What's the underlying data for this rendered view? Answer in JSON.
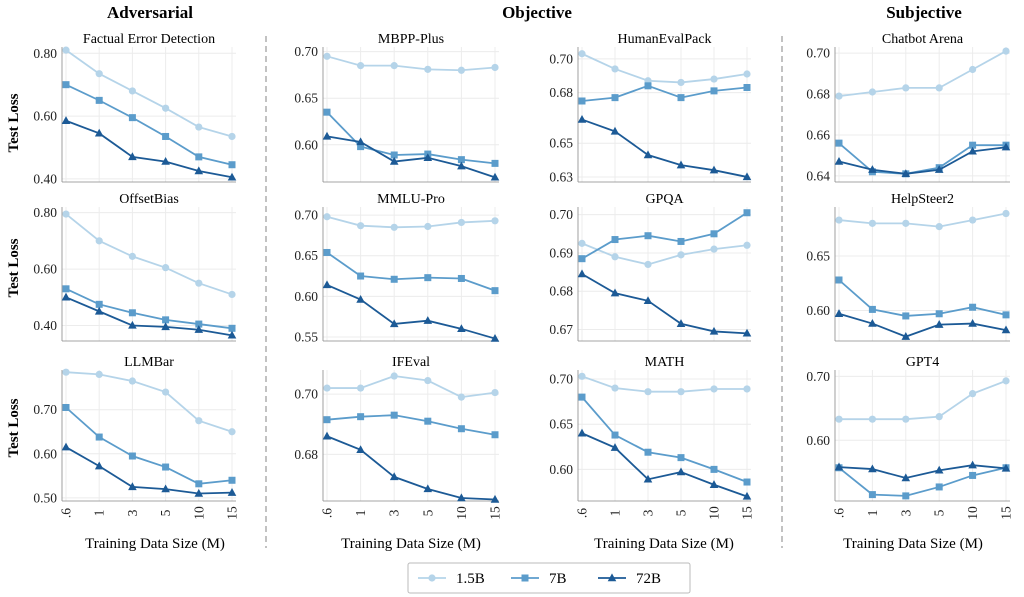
{
  "groups": [
    {
      "title": "Adversarial"
    },
    {
      "title": "Objective"
    },
    {
      "title": "Subjective"
    }
  ],
  "y_axis_label": "Test Loss",
  "x_axis_label": "Training Data Size (M)",
  "x_tick_labels": [
    ".6",
    "1",
    "3",
    "5",
    "10",
    "15"
  ],
  "legend": [
    {
      "label": "1.5B",
      "color": "#b5d4e9",
      "marker": "circle"
    },
    {
      "label": "7B",
      "color": "#5b9ccb",
      "marker": "square"
    },
    {
      "label": "72B",
      "color": "#1c5a96",
      "marker": "triangle"
    }
  ],
  "chart_data": [
    {
      "type": "line",
      "title": "Factual Error Detection",
      "categories": [
        ".6",
        "1",
        "3",
        "5",
        "10",
        "15"
      ],
      "ylim": [
        0.39,
        0.82
      ],
      "yticks": [
        0.4,
        0.6,
        0.8
      ],
      "tick_decimals": 2,
      "series": [
        {
          "name": "1.5B",
          "values": [
            0.81,
            0.735,
            0.68,
            0.625,
            0.565,
            0.535
          ]
        },
        {
          "name": "7B",
          "values": [
            0.7,
            0.65,
            0.595,
            0.535,
            0.47,
            0.445
          ]
        },
        {
          "name": "72B",
          "values": [
            0.585,
            0.545,
            0.47,
            0.455,
            0.425,
            0.405
          ]
        }
      ]
    },
    {
      "type": "line",
      "title": "OffsetBias",
      "categories": [
        ".6",
        "1",
        "3",
        "5",
        "10",
        "15"
      ],
      "ylim": [
        0.345,
        0.82
      ],
      "yticks": [
        0.4,
        0.6,
        0.8
      ],
      "tick_decimals": 2,
      "series": [
        {
          "name": "1.5B",
          "values": [
            0.795,
            0.7,
            0.645,
            0.605,
            0.55,
            0.51
          ]
        },
        {
          "name": "7B",
          "values": [
            0.53,
            0.475,
            0.445,
            0.42,
            0.405,
            0.39
          ]
        },
        {
          "name": "72B",
          "values": [
            0.5,
            0.45,
            0.4,
            0.395,
            0.385,
            0.365
          ]
        }
      ]
    },
    {
      "type": "line",
      "title": "LLMBar",
      "categories": [
        ".6",
        "1",
        "3",
        "5",
        "10",
        "15"
      ],
      "ylim": [
        0.493,
        0.79
      ],
      "yticks": [
        0.5,
        0.6,
        0.7
      ],
      "tick_decimals": 2,
      "series": [
        {
          "name": "1.5B",
          "values": [
            0.785,
            0.78,
            0.765,
            0.74,
            0.675,
            0.65
          ]
        },
        {
          "name": "7B",
          "values": [
            0.705,
            0.638,
            0.595,
            0.57,
            0.532,
            0.54
          ]
        },
        {
          "name": "72B",
          "values": [
            0.615,
            0.572,
            0.525,
            0.52,
            0.51,
            0.512
          ]
        }
      ]
    },
    {
      "type": "line",
      "title": "MBPP-Plus",
      "categories": [
        ".6",
        "1",
        "3",
        "5",
        "10",
        "15"
      ],
      "ylim": [
        0.56,
        0.705
      ],
      "yticks": [
        0.6,
        0.65,
        0.7
      ],
      "tick_decimals": 2,
      "series": [
        {
          "name": "1.5B",
          "values": [
            0.695,
            0.685,
            0.685,
            0.681,
            0.68,
            0.683
          ]
        },
        {
          "name": "7B",
          "values": [
            0.635,
            0.598,
            0.589,
            0.59,
            0.584,
            0.58
          ]
        },
        {
          "name": "72B",
          "values": [
            0.609,
            0.603,
            0.582,
            0.586,
            0.577,
            0.565
          ]
        }
      ]
    },
    {
      "type": "line",
      "title": "MMLU-Pro",
      "categories": [
        ".6",
        "1",
        "3",
        "5",
        "10",
        "15"
      ],
      "ylim": [
        0.545,
        0.71
      ],
      "yticks": [
        0.55,
        0.6,
        0.65,
        0.7
      ],
      "tick_decimals": 2,
      "series": [
        {
          "name": "1.5B",
          "values": [
            0.698,
            0.687,
            0.685,
            0.686,
            0.691,
            0.693
          ]
        },
        {
          "name": "7B",
          "values": [
            0.654,
            0.625,
            0.621,
            0.623,
            0.622,
            0.607
          ]
        },
        {
          "name": "72B",
          "values": [
            0.614,
            0.596,
            0.566,
            0.57,
            0.56,
            0.548
          ]
        }
      ]
    },
    {
      "type": "line",
      "title": "IFEval",
      "categories": [
        ".6",
        "1",
        "3",
        "5",
        "10",
        "15"
      ],
      "ylim": [
        0.6645,
        0.708
      ],
      "yticks": [
        0.68,
        0.7
      ],
      "tick_decimals": 2,
      "series": [
        {
          "name": "1.5B",
          "values": [
            0.702,
            0.702,
            0.706,
            0.7045,
            0.699,
            0.7005
          ]
        },
        {
          "name": "7B",
          "values": [
            0.6915,
            0.6925,
            0.693,
            0.691,
            0.6885,
            0.6865
          ]
        },
        {
          "name": "72B",
          "values": [
            0.686,
            0.6815,
            0.6725,
            0.6685,
            0.6655,
            0.665
          ]
        }
      ]
    },
    {
      "type": "line",
      "title": "HumanEvalPack",
      "categories": [
        ".6",
        "1",
        "3",
        "5",
        "10",
        "15"
      ],
      "ylim": [
        0.627,
        0.707
      ],
      "yticks": [
        0.63,
        0.65,
        0.68,
        0.7
      ],
      "tick_decimals": 2,
      "series": [
        {
          "name": "1.5B",
          "values": [
            0.703,
            0.694,
            0.687,
            0.686,
            0.688,
            0.691
          ]
        },
        {
          "name": "7B",
          "values": [
            0.675,
            0.677,
            0.684,
            0.677,
            0.681,
            0.683
          ]
        },
        {
          "name": "72B",
          "values": [
            0.664,
            0.657,
            0.643,
            0.637,
            0.634,
            0.63
          ]
        }
      ]
    },
    {
      "type": "line",
      "title": "GPQA",
      "categories": [
        ".6",
        "1",
        "3",
        "5",
        "10",
        "15"
      ],
      "ylim": [
        0.667,
        0.702
      ],
      "yticks": [
        0.67,
        0.68,
        0.69,
        0.7
      ],
      "tick_decimals": 2,
      "series": [
        {
          "name": "1.5B",
          "values": [
            0.6925,
            0.689,
            0.687,
            0.6895,
            0.691,
            0.692
          ]
        },
        {
          "name": "7B",
          "values": [
            0.6885,
            0.6935,
            0.6945,
            0.693,
            0.695,
            0.7005
          ]
        },
        {
          "name": "72B",
          "values": [
            0.6845,
            0.6795,
            0.6775,
            0.6715,
            0.6695,
            0.669
          ]
        }
      ]
    },
    {
      "type": "line",
      "title": "MATH",
      "categories": [
        ".6",
        "1",
        "3",
        "5",
        "10",
        "15"
      ],
      "ylim": [
        0.565,
        0.71
      ],
      "yticks": [
        0.6,
        0.65,
        0.7
      ],
      "tick_decimals": 2,
      "series": [
        {
          "name": "1.5B",
          "values": [
            0.703,
            0.69,
            0.686,
            0.686,
            0.689,
            0.689
          ]
        },
        {
          "name": "7B",
          "values": [
            0.68,
            0.638,
            0.619,
            0.613,
            0.6,
            0.586
          ]
        },
        {
          "name": "72B",
          "values": [
            0.64,
            0.624,
            0.589,
            0.597,
            0.583,
            0.57
          ]
        }
      ]
    },
    {
      "type": "line",
      "title": "Chatbot Arena",
      "categories": [
        ".6",
        "1",
        "3",
        "5",
        "10",
        "15"
      ],
      "ylim": [
        0.637,
        0.703
      ],
      "yticks": [
        0.64,
        0.66,
        0.68,
        0.7
      ],
      "tick_decimals": 2,
      "series": [
        {
          "name": "1.5B",
          "values": [
            0.679,
            0.681,
            0.683,
            0.683,
            0.692,
            0.701
          ]
        },
        {
          "name": "7B",
          "values": [
            0.656,
            0.642,
            0.641,
            0.644,
            0.655,
            0.655
          ]
        },
        {
          "name": "72B",
          "values": [
            0.647,
            0.643,
            0.641,
            0.643,
            0.652,
            0.654
          ]
        }
      ]
    },
    {
      "type": "line",
      "title": "HelpSteer2",
      "categories": [
        ".6",
        "1",
        "3",
        "5",
        "10",
        "15"
      ],
      "ylim": [
        0.572,
        0.695
      ],
      "yticks": [
        0.6,
        0.65
      ],
      "tick_decimals": 2,
      "series": [
        {
          "name": "1.5B",
          "values": [
            0.683,
            0.68,
            0.68,
            0.677,
            0.683,
            0.689
          ]
        },
        {
          "name": "7B",
          "values": [
            0.628,
            0.601,
            0.595,
            0.597,
            0.603,
            0.596
          ]
        },
        {
          "name": "72B",
          "values": [
            0.597,
            0.588,
            0.576,
            0.587,
            0.588,
            0.582
          ]
        }
      ]
    },
    {
      "type": "line",
      "title": "GPT4",
      "categories": [
        ".6",
        "1",
        "3",
        "5",
        "10",
        "15"
      ],
      "ylim": [
        0.505,
        0.71
      ],
      "yticks": [
        0.6,
        0.7
      ],
      "tick_decimals": 2,
      "series": [
        {
          "name": "1.5B",
          "values": [
            0.633,
            0.633,
            0.633,
            0.637,
            0.673,
            0.693
          ]
        },
        {
          "name": "7B",
          "values": [
            0.557,
            0.515,
            0.513,
            0.527,
            0.545,
            0.557
          ]
        },
        {
          "name": "72B",
          "values": [
            0.558,
            0.555,
            0.541,
            0.553,
            0.561,
            0.556
          ]
        }
      ]
    }
  ]
}
